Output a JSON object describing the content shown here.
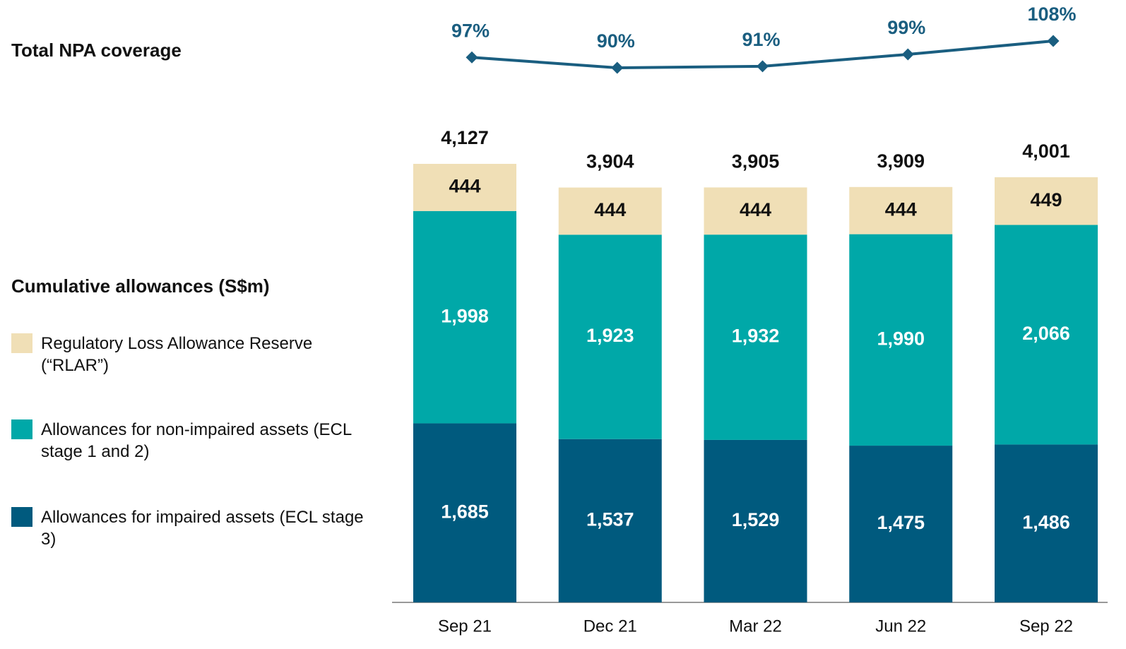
{
  "chart_data": {
    "type": "stacked-bar-line",
    "legend_title": "Cumulative allowances (S$m)",
    "categories": [
      "Sep 21",
      "Dec 21",
      "Mar 22",
      "Jun 22",
      "Sep 22"
    ],
    "series": [
      {
        "name": "Allowances for impaired assets (ECL stage 3)",
        "color": "#005a7e",
        "values": [
          1685,
          1537,
          1529,
          1475,
          1486
        ],
        "value_labels": [
          "1,685",
          "1,537",
          "1,529",
          "1,475",
          "1,486"
        ]
      },
      {
        "name": "Allowances for non-impaired assets (ECL stage 1 and 2)",
        "color": "#00a8a8",
        "values": [
          1998,
          1923,
          1932,
          1990,
          2066
        ],
        "value_labels": [
          "1,998",
          "1,923",
          "1,932",
          "1,990",
          "2,066"
        ]
      },
      {
        "name": "Regulatory Loss Allowance Reserve (“RLAR”)",
        "color": "#f0dfb6",
        "values": [
          444,
          444,
          444,
          444,
          449
        ]
      }
    ],
    "totals": {
      "values": [
        4127,
        3904,
        3905,
        3909,
        4001
      ],
      "value_labels": [
        "4,127",
        "3,904",
        "3,905",
        "3,909",
        "4,001"
      ]
    },
    "coverage": {
      "name": "Total NPA coverage",
      "color": "#1a5e80",
      "values": [
        97,
        90,
        91,
        99,
        108
      ],
      "value_labels": [
        "97%",
        "90%",
        "91%",
        "99%",
        "108%"
      ]
    }
  }
}
